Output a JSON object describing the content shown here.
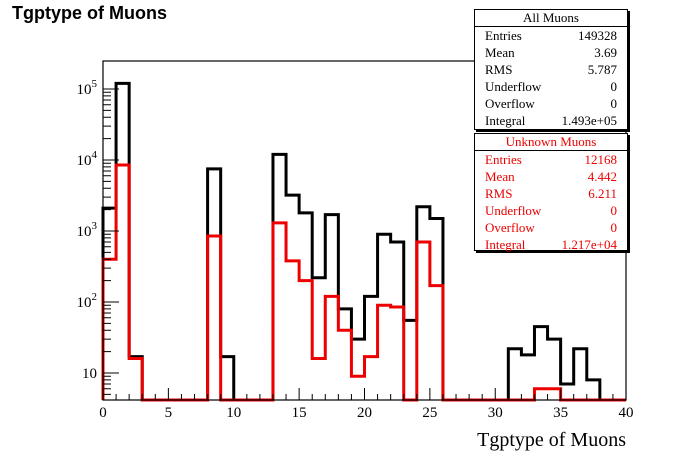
{
  "title": "Tgptype of Muons",
  "chart_data": {
    "type": "histogram",
    "title": "Tgptype of Muons",
    "xlabel": "Tgptype of Muons",
    "ylabel": "",
    "xlim": [
      0,
      40
    ],
    "ylim": [
      4,
      150000
    ],
    "log_y": true,
    "bin_width": 1,
    "x_ticks": [
      "0",
      "5",
      "10",
      "15",
      "20",
      "25",
      "30",
      "35",
      "40"
    ],
    "y_ticks": [
      "10",
      "10^2",
      "10^3",
      "10^4",
      "10^5"
    ],
    "series": [
      {
        "name": "All Muons",
        "color": "#000000",
        "values": [
          2100,
          120000,
          17,
          0,
          0,
          0,
          0,
          0,
          7500,
          17,
          0,
          0,
          0,
          12000,
          3200,
          1800,
          220,
          1700,
          80,
          30,
          120,
          900,
          700,
          55,
          2200,
          1500,
          0,
          0,
          0,
          0,
          0,
          22,
          18,
          45,
          30,
          7,
          22,
          8,
          0,
          0
        ]
      },
      {
        "name": "Unknown Muons",
        "color": "#ee0000",
        "values": [
          400,
          8500,
          16,
          0,
          0,
          0,
          0,
          0,
          850,
          0,
          0,
          0,
          0,
          1300,
          380,
          200,
          16,
          120,
          40,
          9,
          17,
          90,
          85,
          0,
          700,
          170,
          0,
          0,
          0,
          0,
          0,
          0,
          0,
          6,
          6,
          0,
          0,
          0,
          0,
          0
        ]
      }
    ]
  },
  "stats": {
    "all": {
      "title": "All Muons",
      "rows": [
        {
          "label": "Entries",
          "value": "149328"
        },
        {
          "label": "Mean",
          "value": "3.69"
        },
        {
          "label": "RMS",
          "value": "5.787"
        },
        {
          "label": "Underflow",
          "value": "0"
        },
        {
          "label": "Overflow",
          "value": "0"
        },
        {
          "label": "Integral",
          "value": "1.493e+05"
        }
      ]
    },
    "unknown": {
      "title": "Unknown Muons",
      "rows": [
        {
          "label": "Entries",
          "value": "12168"
        },
        {
          "label": "Mean",
          "value": "4.442"
        },
        {
          "label": "RMS",
          "value": "6.211"
        },
        {
          "label": "Underflow",
          "value": "0"
        },
        {
          "label": "Overflow",
          "value": "0"
        },
        {
          "label": "Integral",
          "value": "1.217e+04"
        }
      ]
    }
  }
}
